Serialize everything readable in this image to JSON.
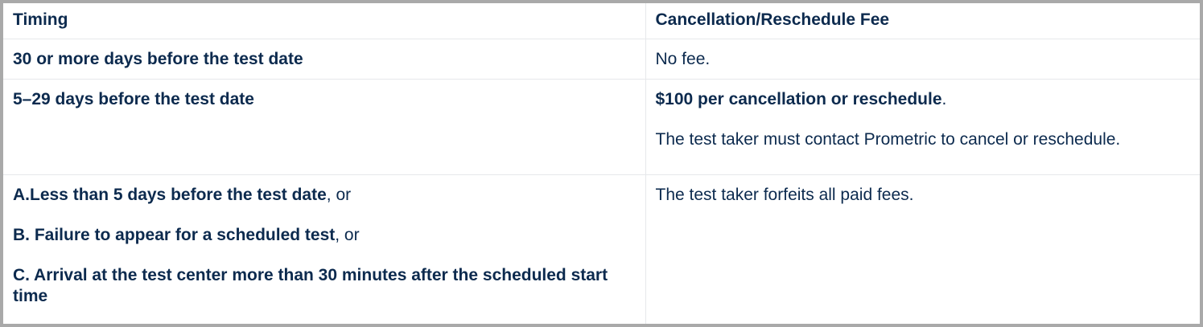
{
  "table": {
    "headers": [
      "Timing",
      "Cancellation/Reschedule Fee"
    ],
    "rows": [
      {
        "timing": "30 or more days before the test date",
        "fee": "No fee."
      },
      {
        "timing": "5–29 days before the test date",
        "fee_bold": "$100 per cancellation or reschedule",
        "fee_suffix": ".",
        "fee_note": "The test taker must contact Prometric to cancel or reschedule."
      },
      {
        "timing_items": [
          {
            "bold": "A.Less than 5 days before the test date",
            "suffix": ", or"
          },
          {
            "bold": "B. Failure to appear for a scheduled test",
            "suffix": ", or"
          },
          {
            "bold": "C. Arrival at the test center more than 30 minutes after the scheduled start time",
            "suffix": ""
          }
        ],
        "fee": "The test taker forfeits all paid fees."
      }
    ]
  },
  "colors": {
    "text": "#0c2a4e",
    "border": "#a9a9a9",
    "rule": "#e6e8eb"
  }
}
